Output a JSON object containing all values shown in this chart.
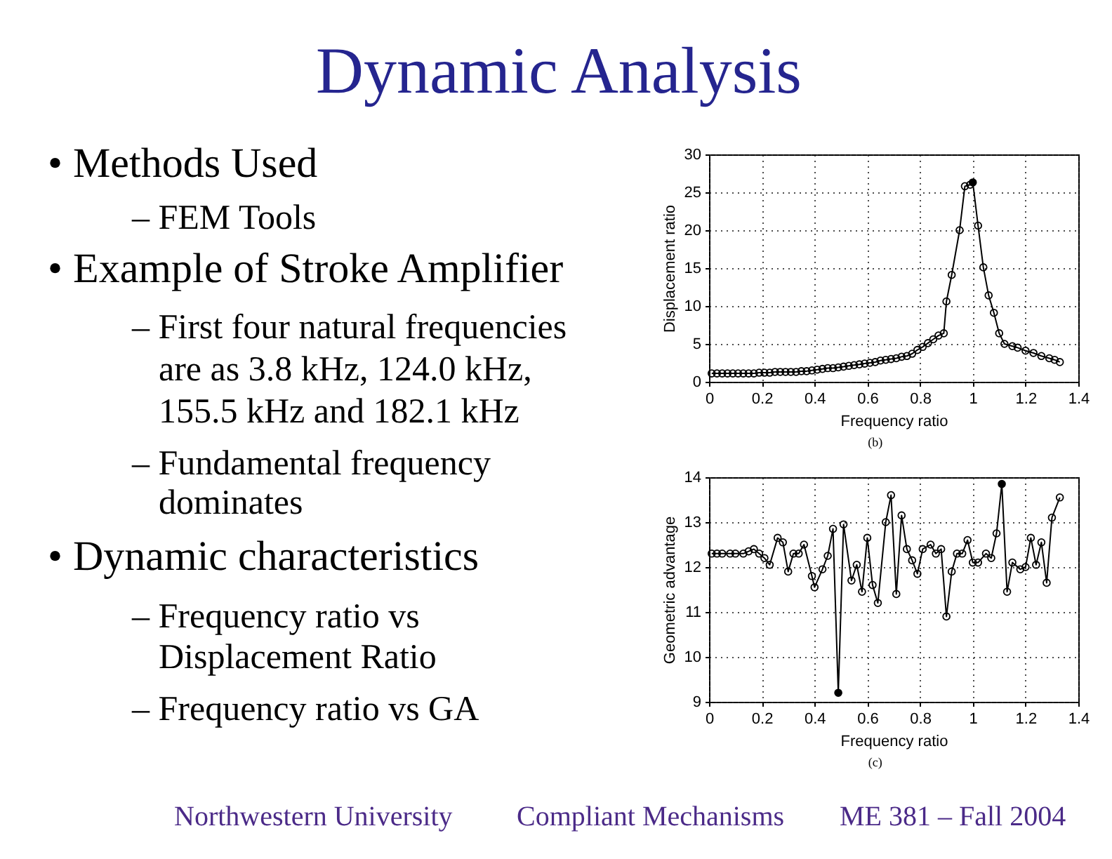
{
  "chart_data": [
    {
      "type": "other",
      "title": "Dynamic Analysis",
      "annotations": [
        "• Methods Used",
        "– FEM Tools",
        "• Example of Stroke Amplifier",
        "– First four natural frequencies",
        "are as 3.8 kHz, 124.0 kHz,",
        "155.5 kHz and 182.1 kHz",
        "– Fundamental frequency",
        "dominates",
        "• Dynamic characteristics",
        "– Frequency ratio vs",
        "Displacement Ratio",
        "– Frequency ratio vs GA",
        "Northwestern University",
        "Compliant Mechanisms",
        "ME 381 – Fall 2004"
      ]
    },
    {
      "type": "line",
      "xlabel": "Frequency ratio",
      "ylabel": "Displacement ratio",
      "xlim": [
        0,
        1.4
      ],
      "xticks": [
        0,
        0.2,
        0.4,
        0.6,
        0.8,
        1,
        1.2,
        1.4
      ],
      "ylim": [
        0,
        30
      ],
      "yticks": [
        0,
        5,
        10,
        15,
        20,
        25,
        30
      ],
      "grid": true,
      "marker": "circle",
      "annotations": [
        "(b)"
      ],
      "series": [
        {
          "color": "#000000",
          "x": [
            0.01,
            0.03,
            0.05,
            0.07,
            0.09,
            0.11,
            0.13,
            0.15,
            0.17,
            0.19,
            0.21,
            0.23,
            0.25,
            0.27,
            0.29,
            0.31,
            0.33,
            0.35,
            0.37,
            0.39,
            0.41,
            0.43,
            0.45,
            0.47,
            0.49,
            0.51,
            0.53,
            0.55,
            0.57,
            0.59,
            0.61,
            0.63,
            0.65,
            0.67,
            0.69,
            0.71,
            0.73,
            0.75,
            0.77,
            0.79,
            0.81,
            0.83,
            0.85,
            0.87,
            0.89,
            0.9,
            0.92,
            0.95,
            0.97,
            0.99,
            1.0,
            1.02,
            1.04,
            1.06,
            1.08,
            1.1,
            1.12,
            1.15,
            1.17,
            1.2,
            1.23,
            1.26,
            1.29,
            1.31,
            1.33
          ],
          "values": [
            1.1,
            1.1,
            1.1,
            1.1,
            1.1,
            1.1,
            1.1,
            1.1,
            1.1,
            1.2,
            1.2,
            1.2,
            1.3,
            1.3,
            1.3,
            1.3,
            1.3,
            1.4,
            1.4,
            1.5,
            1.6,
            1.7,
            1.8,
            1.8,
            1.9,
            2.0,
            2.1,
            2.2,
            2.3,
            2.4,
            2.5,
            2.6,
            2.8,
            2.9,
            3.0,
            3.1,
            3.3,
            3.4,
            3.7,
            4.2,
            4.6,
            5.1,
            5.6,
            6.1,
            6.4,
            10.6,
            14.1,
            20.0,
            25.8,
            26.0,
            26.3,
            20.6,
            15.1,
            11.4,
            9.1,
            6.4,
            5.0,
            4.7,
            4.5,
            4.1,
            3.8,
            3.4,
            3.1,
            2.9,
            2.6
          ]
        },
        {
          "type": "scatter",
          "color": "#000000",
          "x": [
            1.0
          ],
          "values": [
            26.3
          ]
        }
      ]
    },
    {
      "type": "line",
      "xlabel": "Frequency ratio",
      "ylabel": "Geometric advantage",
      "xlim": [
        0,
        1.4
      ],
      "xticks": [
        0,
        0.2,
        0.4,
        0.6,
        0.8,
        1,
        1.2,
        1.4
      ],
      "ylim": [
        9,
        14
      ],
      "yticks": [
        9,
        10,
        11,
        12,
        13,
        14
      ],
      "grid": true,
      "marker": "circle",
      "annotations": [
        "(c)"
      ],
      "series": [
        {
          "color": "#000000",
          "x": [
            0.01,
            0.03,
            0.05,
            0.08,
            0.1,
            0.13,
            0.15,
            0.17,
            0.19,
            0.21,
            0.23,
            0.26,
            0.28,
            0.3,
            0.32,
            0.34,
            0.36,
            0.39,
            0.4,
            0.43,
            0.45,
            0.47,
            0.49,
            0.51,
            0.54,
            0.56,
            0.58,
            0.6,
            0.62,
            0.64,
            0.67,
            0.69,
            0.71,
            0.73,
            0.75,
            0.77,
            0.79,
            0.81,
            0.84,
            0.86,
            0.88,
            0.9,
            0.92,
            0.94,
            0.96,
            0.98,
            1.0,
            1.02,
            1.05,
            1.07,
            1.09,
            1.11,
            1.13,
            1.15,
            1.18,
            1.2,
            1.22,
            1.24,
            1.26,
            1.28,
            1.3,
            1.33
          ],
          "values": [
            12.3,
            12.3,
            12.3,
            12.3,
            12.3,
            12.3,
            12.35,
            12.4,
            12.3,
            12.2,
            12.05,
            12.65,
            12.55,
            11.9,
            12.3,
            12.3,
            12.5,
            11.8,
            11.55,
            11.95,
            12.25,
            12.85,
            9.2,
            12.95,
            11.7,
            12.05,
            11.45,
            12.65,
            11.6,
            11.2,
            13.0,
            13.6,
            11.4,
            13.15,
            12.4,
            12.15,
            11.85,
            12.4,
            12.5,
            12.3,
            12.4,
            10.9,
            11.9,
            12.3,
            12.3,
            12.6,
            12.1,
            12.1,
            12.3,
            12.2,
            12.75,
            13.85,
            11.45,
            12.1,
            11.95,
            12.0,
            12.65,
            12.05,
            12.55,
            11.65,
            13.1,
            13.55
          ]
        },
        {
          "type": "scatter",
          "color": "#000000",
          "x": [
            0.49,
            1.11
          ],
          "values": [
            9.2,
            13.85
          ]
        }
      ]
    }
  ]
}
